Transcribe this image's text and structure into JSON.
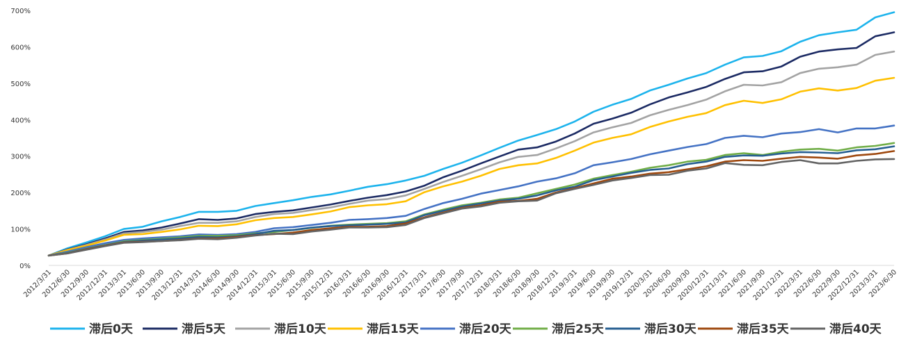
{
  "chart_data": {
    "type": "line",
    "title": "",
    "xlabel": "",
    "ylabel": "",
    "ylim": [
      0,
      700
    ],
    "yticks": [
      0,
      100,
      200,
      300,
      400,
      500,
      600,
      700
    ],
    "ytick_labels": [
      "0%",
      "100%",
      "200%",
      "300%",
      "400%",
      "500%",
      "600%",
      "700%"
    ],
    "grid": false,
    "legend_position": "bottom",
    "categories": [
      "2012/3/31",
      "2012/6/30",
      "2012/9/30",
      "2012/12/31",
      "2013/3/31",
      "2013/6/30",
      "2013/9/30",
      "2013/12/31",
      "2014/3/31",
      "2014/6/30",
      "2014/9/30",
      "2014/12/31",
      "2015/3/31",
      "2015/6/30",
      "2015/9/30",
      "2015/12/31",
      "2016/3/31",
      "2016/6/30",
      "2016/9/30",
      "2016/12/31",
      "2017/3/31",
      "2017/6/30",
      "2017/9/30",
      "2017/12/31",
      "2018/3/31",
      "2018/6/30",
      "2018/9/30",
      "2018/12/31",
      "2019/3/31",
      "2019/6/30",
      "2019/9/30",
      "2019/12/31",
      "2020/3/31",
      "2020/6/30",
      "2020/9/30",
      "2020/12/31",
      "2021/3/31",
      "2021/6/30",
      "2021/9/30",
      "2021/12/31",
      "2022/3/31",
      "2022/6/30",
      "2022/9/30",
      "2022/12/31",
      "2023/3/31",
      "2023/6/30"
    ],
    "series": [
      {
        "name": "滞后0天",
        "color": "#1cb3ec",
        "values": [
          27,
          47,
          63,
          80,
          100,
          106,
          121,
          133,
          147,
          147,
          150,
          163,
          171,
          179,
          188,
          195,
          205,
          216,
          223,
          233,
          246,
          265,
          282,
          302,
          323,
          343,
          358,
          374,
          395,
          422,
          441,
          457,
          480,
          496,
          513,
          528,
          551,
          571,
          575,
          588,
          614,
          632,
          640,
          647,
          681,
          695
        ]
      },
      {
        "name": "滞后5天",
        "color": "#1b2a63",
        "values": [
          27,
          44,
          58,
          74,
          92,
          96,
          104,
          115,
          127,
          125,
          129,
          141,
          147,
          151,
          159,
          167,
          177,
          186,
          193,
          203,
          219,
          242,
          260,
          280,
          299,
          318,
          324,
          340,
          362,
          389,
          403,
          419,
          442,
          461,
          475,
          490,
          512,
          530,
          533,
          546,
          573,
          587,
          593,
          597,
          629,
          640
        ]
      },
      {
        "name": "滞后10天",
        "color": "#a3a3a3",
        "values": [
          27,
          43,
          56,
          71,
          88,
          92,
          98,
          108,
          117,
          117,
          121,
          133,
          141,
          144,
          152,
          159,
          169,
          178,
          182,
          192,
          210,
          229,
          246,
          264,
          283,
          298,
          303,
          321,
          341,
          365,
          379,
          391,
          412,
          427,
          440,
          455,
          478,
          496,
          494,
          503,
          528,
          540,
          544,
          551,
          578,
          587
        ]
      },
      {
        "name": "滞后15天",
        "color": "#ffc000",
        "values": [
          27,
          42,
          54,
          68,
          84,
          86,
          92,
          99,
          109,
          108,
          113,
          124,
          130,
          133,
          140,
          148,
          160,
          165,
          168,
          176,
          201,
          217,
          230,
          246,
          265,
          275,
          280,
          295,
          315,
          337,
          350,
          360,
          380,
          395,
          408,
          418,
          440,
          452,
          446,
          456,
          477,
          486,
          480,
          487,
          507,
          515
        ]
      },
      {
        "name": "滞后20天",
        "color": "#4472c4",
        "values": [
          27,
          38,
          50,
          61,
          70,
          74,
          77,
          80,
          85,
          84,
          86,
          92,
          102,
          105,
          111,
          117,
          125,
          127,
          130,
          136,
          155,
          171,
          183,
          197,
          207,
          217,
          230,
          239,
          253,
          275,
          283,
          292,
          305,
          315,
          325,
          333,
          350,
          356,
          352,
          362,
          366,
          374,
          365,
          376,
          376,
          384
        ]
      },
      {
        "name": "滞后25天",
        "color": "#70ad47",
        "values": [
          27,
          35,
          46,
          56,
          66,
          70,
          73,
          77,
          81,
          81,
          83,
          88,
          92,
          97,
          103,
          109,
          112,
          114,
          116,
          121,
          140,
          153,
          165,
          172,
          181,
          186,
          198,
          210,
          222,
          238,
          248,
          257,
          268,
          275,
          285,
          290,
          303,
          308,
          303,
          312,
          318,
          320,
          315,
          324,
          328,
          336
        ]
      },
      {
        "name": "滞后30天",
        "color": "#255e91",
        "values": [
          27,
          34,
          45,
          55,
          64,
          68,
          71,
          74,
          78,
          77,
          80,
          86,
          95,
          97,
          104,
          108,
          110,
          112,
          114,
          118,
          138,
          150,
          162,
          170,
          178,
          183,
          192,
          206,
          216,
          234,
          244,
          254,
          262,
          266,
          278,
          285,
          298,
          302,
          301,
          307,
          311,
          310,
          308,
          316,
          319,
          327
        ]
      },
      {
        "name": "滞后35天",
        "color": "#9e480e",
        "values": [
          27,
          33,
          44,
          54,
          63,
          65,
          67,
          70,
          74,
          74,
          78,
          83,
          86,
          90,
          97,
          102,
          106,
          106,
          108,
          115,
          132,
          145,
          158,
          165,
          175,
          177,
          183,
          200,
          212,
          225,
          238,
          244,
          252,
          256,
          264,
          272,
          285,
          289,
          287,
          293,
          298,
          296,
          293,
          302,
          306,
          314
        ]
      },
      {
        "name": "滞后40天",
        "color": "#636363",
        "values": [
          27,
          33,
          43,
          53,
          62,
          64,
          67,
          69,
          73,
          72,
          76,
          82,
          87,
          86,
          93,
          98,
          104,
          104,
          105,
          111,
          130,
          143,
          156,
          162,
          172,
          176,
          178,
          198,
          210,
          221,
          233,
          240,
          248,
          249,
          260,
          266,
          281,
          276,
          275,
          284,
          289,
          280,
          280,
          287,
          291,
          292
        ]
      }
    ]
  }
}
